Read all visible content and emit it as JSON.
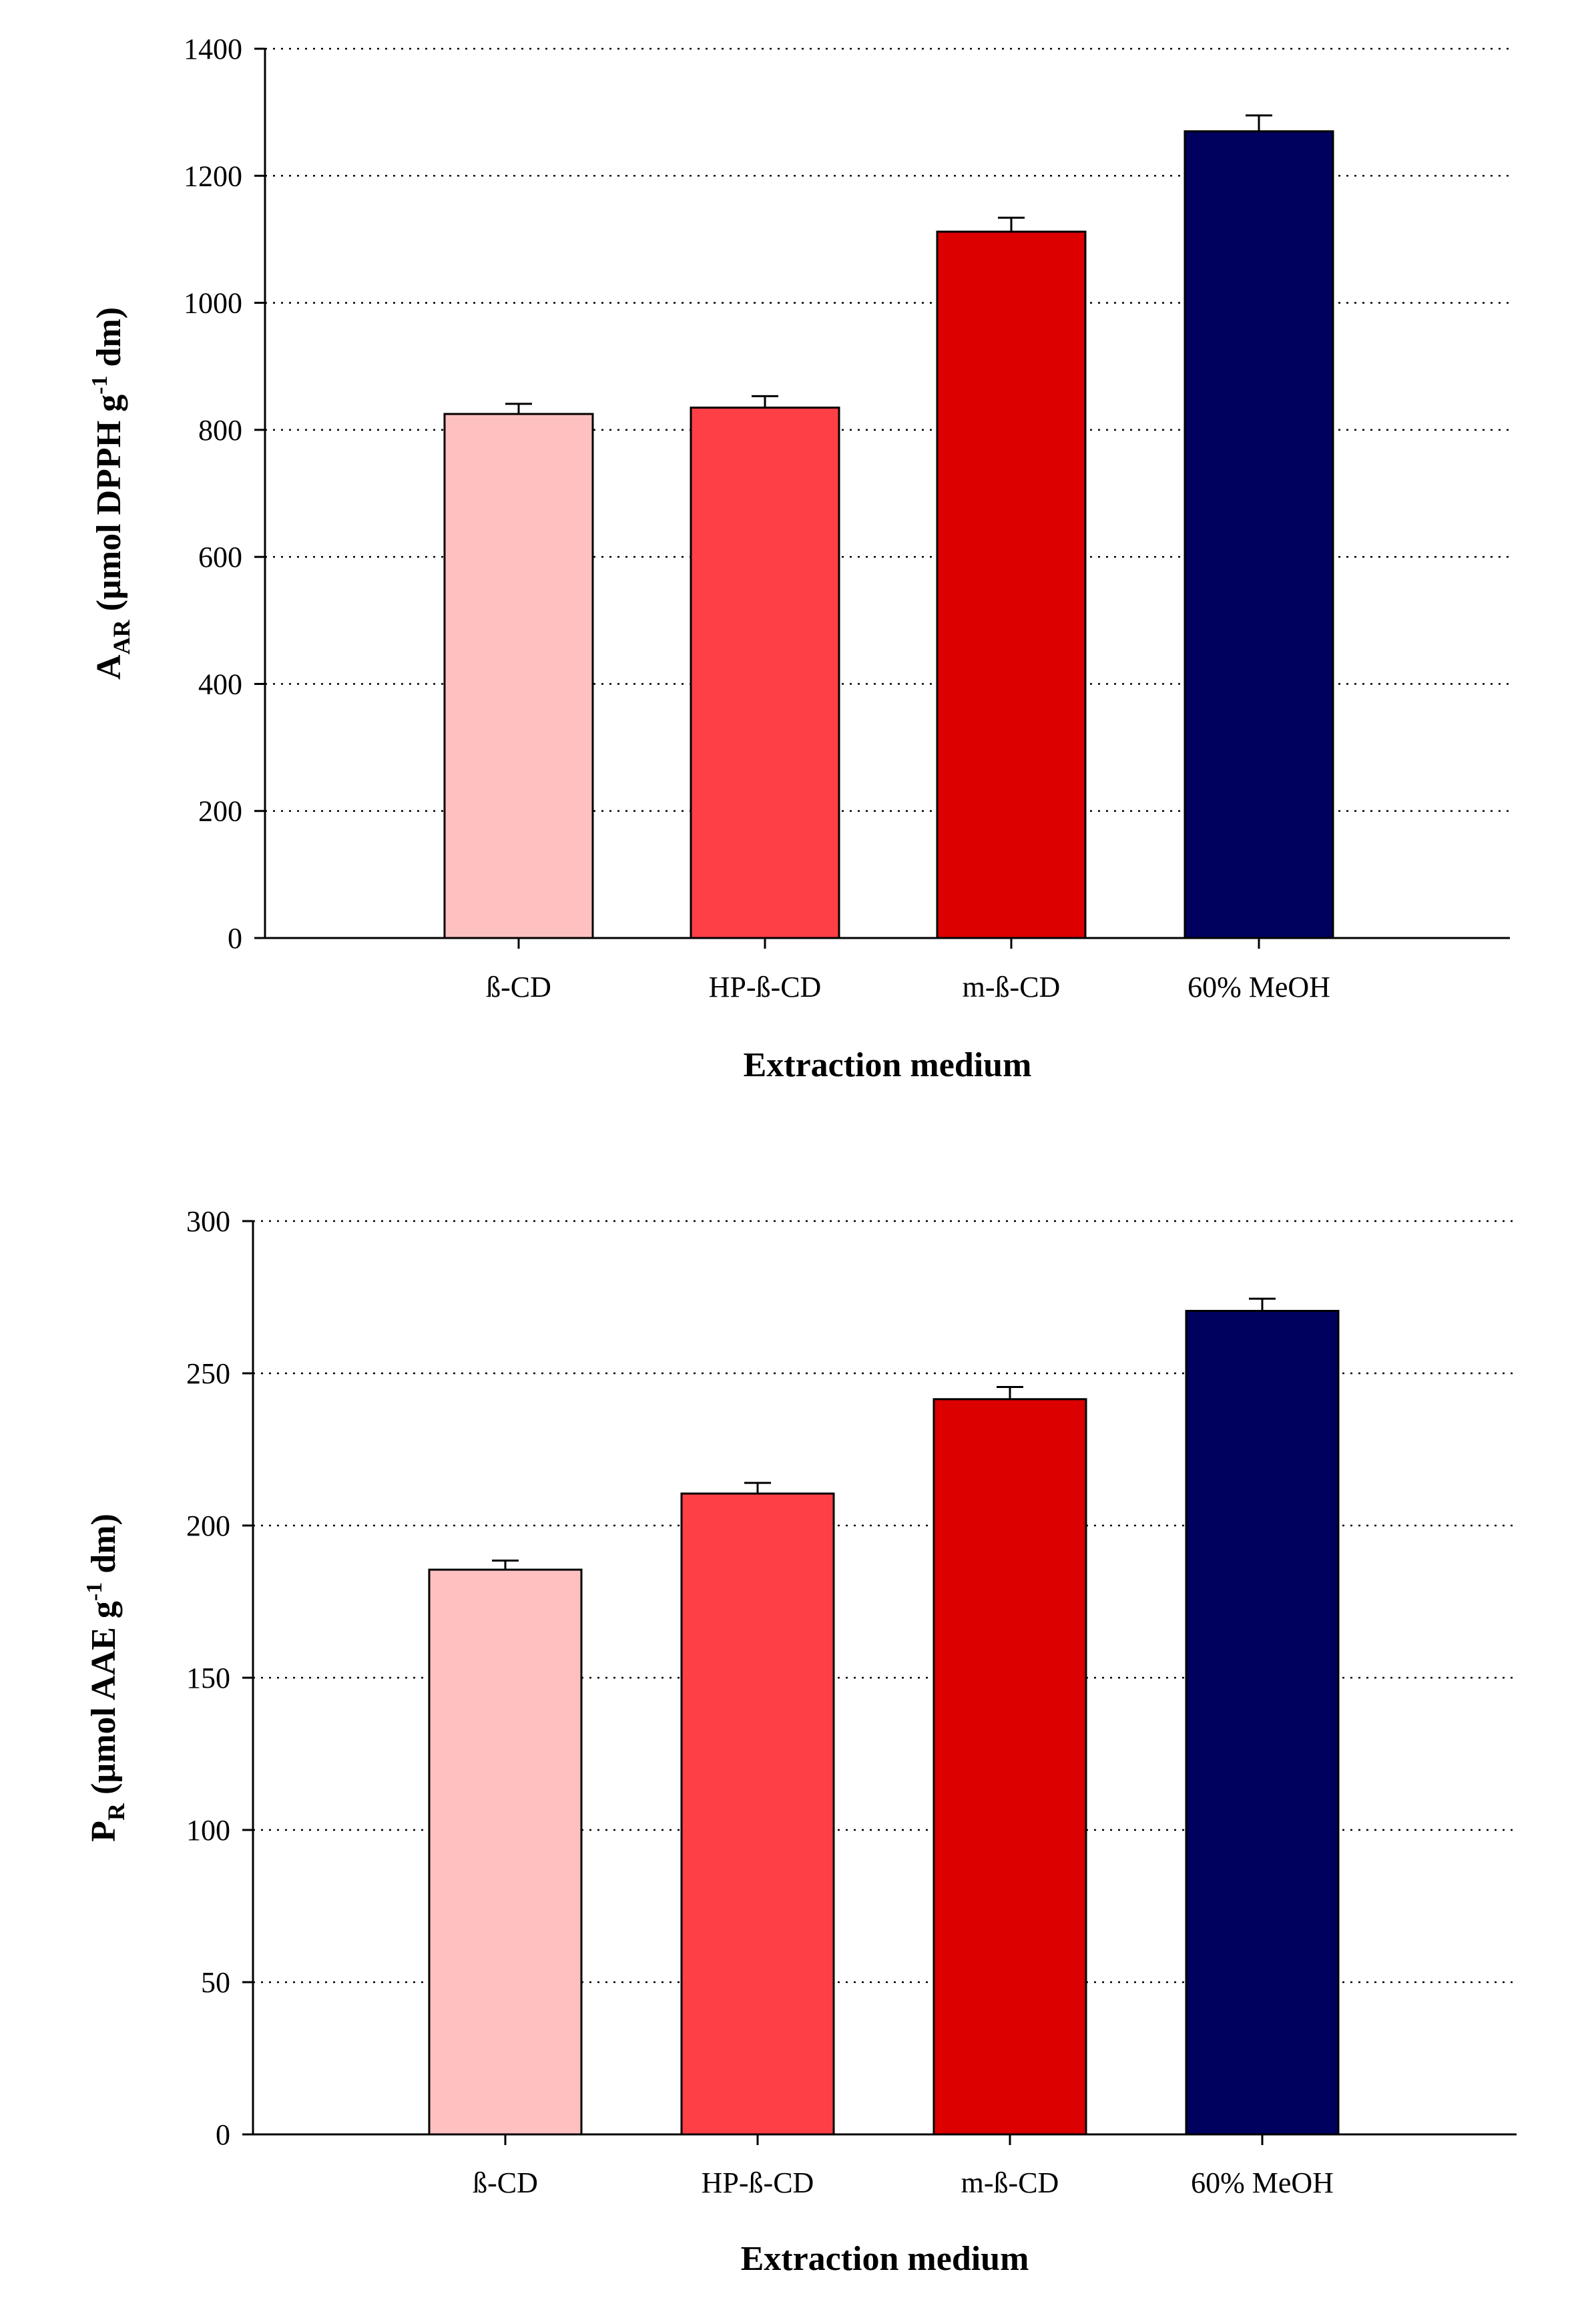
{
  "chart_data": [
    {
      "type": "bar",
      "title": "",
      "categories": [
        "ß-CD",
        "HP-ß-CD",
        "m-ß-CD",
        "60% MeOH"
      ],
      "values": [
        825,
        835,
        1112,
        1270
      ],
      "errors": [
        16,
        18,
        22,
        25
      ],
      "colors": [
        "#FFC0C0",
        "#FF3F46",
        "#DC0000",
        "#00005F"
      ],
      "xlabel": "Extraction medium",
      "ylabel": {
        "main": "A",
        "sub": "AR",
        "pre": " (µmol DPPH g",
        "sup": "-1",
        "post": " dm)"
      },
      "ylim": [
        0,
        1400
      ],
      "yticks": [
        0,
        200,
        400,
        600,
        800,
        1000,
        1200,
        1400
      ],
      "grid": true
    },
    {
      "type": "bar",
      "title": "",
      "categories": [
        "ß-CD",
        "HP-ß-CD",
        "m-ß-CD",
        "60% MeOH"
      ],
      "values": [
        185.5,
        210.5,
        241.5,
        270.5
      ],
      "errors": [
        3,
        3.5,
        4,
        4
      ],
      "colors": [
        "#FFC0C0",
        "#FF3F46",
        "#DC0000",
        "#00005F"
      ],
      "xlabel": "Extraction medium",
      "ylabel": {
        "main": "P",
        "sub": "R",
        "pre": " (µmol AAE g",
        "sup": "-1",
        "post": " dm)"
      },
      "ylim": [
        0,
        300
      ],
      "yticks": [
        0,
        50,
        100,
        150,
        200,
        250,
        300
      ],
      "grid": true
    }
  ]
}
